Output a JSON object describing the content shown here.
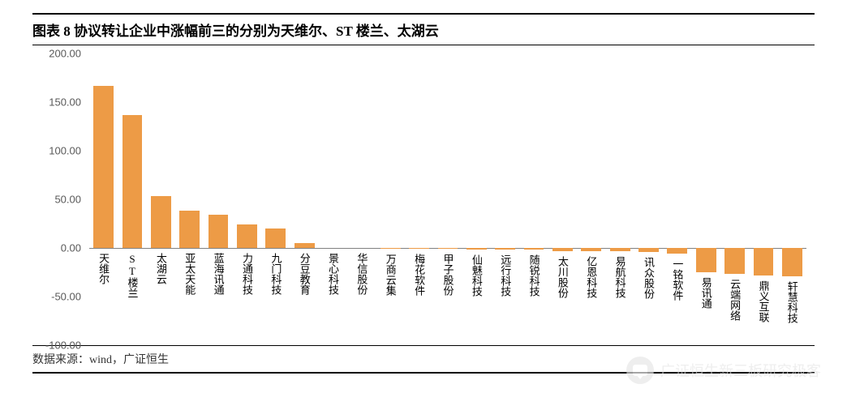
{
  "title": "图表 8 协议转让企业中涨幅前三的分别为天维尔、ST 楼兰、太湖云",
  "source_label": "数据来源：wind，广证恒生",
  "watermark_text": "广证恒生新三板研究极客",
  "chart": {
    "type": "bar",
    "bar_color": "#ed9b46",
    "axis_color": "#808080",
    "tick_color": "#595959",
    "background_color": "#ffffff",
    "ylim": [
      -100,
      200
    ],
    "ytick_step": 50,
    "yticks": [
      -100,
      -50,
      0,
      50,
      100,
      150,
      200
    ],
    "ytick_labels": [
      "-100.00",
      "-50.00",
      "0.00",
      "50.00",
      "100.00",
      "150.00",
      "200.00"
    ],
    "tick_fontsize": 13,
    "label_fontsize": 13,
    "label_orientation": "vertical",
    "bar_width_ratio": 0.7,
    "categories": [
      "天维尔",
      "ST楼兰",
      "太湖云",
      "亚太天能",
      "蓝海讯通",
      "力通科技",
      "九门科技",
      "分豆教育",
      "景心科技",
      "华信股份",
      "万商云集",
      "梅花软件",
      "甲子股份",
      "仙魅科技",
      "远行科技",
      "随锐科技",
      "太川股份",
      "亿恩科技",
      "易航科技",
      "讯众股份",
      "一铭软件",
      "易讯通",
      "云端网络",
      "鼎义互联",
      "轩慧科技"
    ],
    "values": [
      167,
      137,
      53,
      38,
      34,
      24,
      20,
      5,
      0,
      0,
      -1,
      -1,
      -1,
      -2,
      -2,
      -2,
      -3,
      -3,
      -3,
      -4,
      -6,
      -25,
      -27,
      -28,
      -29
    ]
  }
}
